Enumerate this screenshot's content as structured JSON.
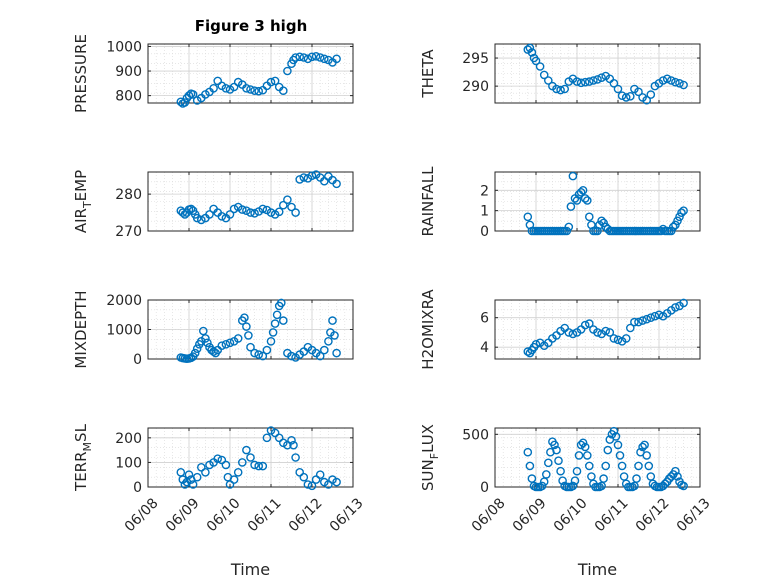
{
  "figure": {
    "title": "Figure 3 high",
    "marker_color": "#0072BD",
    "x_axis_label": "Time",
    "x_ticks": [
      "06/08",
      "06/09",
      "06/10",
      "06/11",
      "06/12",
      "06/13"
    ]
  },
  "chart_data": [
    {
      "type": "scatter",
      "title": "Figure 3 high",
      "ylabel": "PRESSURE",
      "ylim": [
        770,
        1010
      ],
      "yticks": [
        "800",
        "900",
        "1000"
      ],
      "ytick_values": [
        800,
        900,
        1000
      ],
      "xlim": [
        0,
        5
      ],
      "grid": true,
      "series": [
        {
          "x": [
            0.8,
            0.85,
            0.9,
            0.95,
            1.0,
            1.05,
            1.1,
            1.2,
            1.3,
            1.4,
            1.5,
            1.6,
            1.7,
            1.8,
            1.9,
            2.0,
            2.1,
            2.2,
            2.3,
            2.4,
            2.5,
            2.6,
            2.7,
            2.8,
            2.9,
            3.0,
            3.1,
            3.2,
            3.3,
            3.4,
            3.5,
            3.55,
            3.6,
            3.7,
            3.8,
            3.9,
            4.0,
            4.1,
            4.2,
            4.3,
            4.4,
            4.5,
            4.6
          ],
          "y": [
            775,
            768,
            772,
            790,
            800,
            808,
            805,
            780,
            790,
            805,
            815,
            830,
            860,
            840,
            830,
            825,
            835,
            855,
            845,
            830,
            825,
            820,
            818,
            822,
            840,
            855,
            860,
            835,
            820,
            900,
            930,
            945,
            955,
            958,
            955,
            950,
            958,
            960,
            955,
            950,
            945,
            935,
            950
          ]
        }
      ]
    },
    {
      "type": "scatter",
      "ylabel": "THETA",
      "ylim": [
        287,
        297.5
      ],
      "yticks": [
        "290",
        "295"
      ],
      "ytick_values": [
        290,
        295
      ],
      "xlim": [
        0,
        5
      ],
      "grid": true,
      "series": [
        {
          "x": [
            0.8,
            0.85,
            0.9,
            0.95,
            1.0,
            1.1,
            1.2,
            1.3,
            1.4,
            1.5,
            1.6,
            1.7,
            1.8,
            1.9,
            2.0,
            2.1,
            2.2,
            2.3,
            2.4,
            2.5,
            2.6,
            2.7,
            2.8,
            2.9,
            3.0,
            3.1,
            3.2,
            3.3,
            3.4,
            3.5,
            3.6,
            3.7,
            3.8,
            3.9,
            4.0,
            4.1,
            4.2,
            4.3,
            4.4,
            4.5,
            4.6
          ],
          "y": [
            296.5,
            296.8,
            296.0,
            295.0,
            294.5,
            293.5,
            292.0,
            291.0,
            290.0,
            289.5,
            289.3,
            289.5,
            290.8,
            291.3,
            290.8,
            290.6,
            290.7,
            290.8,
            291.0,
            291.2,
            291.5,
            291.8,
            291.3,
            290.5,
            289.5,
            288.3,
            288.0,
            288.2,
            289.5,
            289.0,
            288.0,
            287.5,
            288.5,
            290.0,
            290.5,
            291.0,
            291.3,
            291.0,
            290.7,
            290.5,
            290.2
          ]
        }
      ]
    },
    {
      "type": "scatter",
      "ylabel": "AIR_TEMP",
      "ylim": [
        270,
        286
      ],
      "yticks": [
        "270",
        "280"
      ],
      "ytick_values": [
        270,
        280
      ],
      "xlim": [
        0,
        5
      ],
      "grid": true,
      "series": [
        {
          "x": [
            0.8,
            0.85,
            0.9,
            0.95,
            1.0,
            1.05,
            1.1,
            1.15,
            1.2,
            1.3,
            1.4,
            1.5,
            1.6,
            1.7,
            1.8,
            1.9,
            2.0,
            2.1,
            2.2,
            2.3,
            2.4,
            2.5,
            2.6,
            2.7,
            2.8,
            2.9,
            3.0,
            3.1,
            3.2,
            3.3,
            3.4,
            3.5,
            3.6,
            3.7,
            3.8,
            3.9,
            4.0,
            4.1,
            4.2,
            4.3,
            4.4,
            4.5,
            4.6
          ],
          "y": [
            275.5,
            275.0,
            274.5,
            275.0,
            275.8,
            276.0,
            275.5,
            274.5,
            273.5,
            273.0,
            273.5,
            274.5,
            276.0,
            275.0,
            274.0,
            273.5,
            274.5,
            276.0,
            276.5,
            275.8,
            275.5,
            275.0,
            274.8,
            275.3,
            276.0,
            275.7,
            275.0,
            274.5,
            275.2,
            277.0,
            278.5,
            276.5,
            275.0,
            284.0,
            284.5,
            284.3,
            285.0,
            285.3,
            284.5,
            283.5,
            284.8,
            283.8,
            282.8
          ]
        }
      ]
    },
    {
      "type": "scatter",
      "ylabel": "RAINFALL",
      "ylim": [
        0,
        2.9
      ],
      "yticks": [
        "0",
        "1",
        "2"
      ],
      "ytick_values": [
        0,
        1,
        2
      ],
      "xlim": [
        0,
        5
      ],
      "grid": true,
      "series": [
        {
          "x": [
            0.8,
            0.85,
            0.9,
            0.95,
            1.0,
            1.05,
            1.1,
            1.15,
            1.2,
            1.25,
            1.3,
            1.35,
            1.4,
            1.45,
            1.5,
            1.55,
            1.6,
            1.65,
            1.7,
            1.75,
            1.8,
            1.85,
            1.9,
            1.95,
            2.0,
            2.05,
            2.1,
            2.15,
            2.2,
            2.25,
            2.3,
            2.35,
            2.4,
            2.45,
            2.5,
            2.55,
            2.6,
            2.65,
            2.7,
            2.75,
            2.8,
            2.85,
            2.9,
            2.95,
            3.0,
            3.05,
            3.1,
            3.15,
            3.2,
            3.25,
            3.3,
            3.35,
            3.4,
            3.45,
            3.5,
            3.55,
            3.6,
            3.65,
            3.7,
            3.75,
            3.8,
            3.85,
            3.9,
            3.95,
            4.0,
            4.05,
            4.1,
            4.15,
            4.2,
            4.25,
            4.3,
            4.35,
            4.4,
            4.45,
            4.5,
            4.55,
            4.6
          ],
          "y": [
            0.7,
            0.3,
            0,
            0,
            0,
            0,
            0,
            0,
            0,
            0,
            0,
            0,
            0,
            0,
            0,
            0,
            0,
            0,
            0,
            0,
            0.2,
            1.2,
            2.7,
            1.6,
            1.5,
            1.8,
            1.9,
            2.0,
            1.6,
            1.5,
            0.7,
            0.3,
            0,
            0,
            0,
            0.3,
            0.5,
            0.4,
            0.2,
            0.1,
            0,
            0,
            0,
            0,
            0,
            0,
            0,
            0,
            0,
            0,
            0,
            0,
            0,
            0,
            0,
            0,
            0,
            0,
            0,
            0,
            0,
            0,
            0,
            0,
            0,
            0,
            0.1,
            0,
            0,
            0,
            0,
            0.2,
            0.3,
            0.5,
            0.7,
            0.9,
            1.0
          ]
        }
      ]
    },
    {
      "type": "scatter",
      "ylabel": "MIXDEPTH",
      "ylim": [
        0,
        2000
      ],
      "yticks": [
        "0",
        "1000",
        "2000"
      ],
      "ytick_values": [
        0,
        1000,
        2000
      ],
      "xlim": [
        0,
        5
      ],
      "grid": true,
      "series": [
        {
          "x": [
            0.8,
            0.85,
            0.9,
            0.95,
            1.0,
            1.05,
            1.1,
            1.15,
            1.2,
            1.25,
            1.3,
            1.35,
            1.4,
            1.45,
            1.5,
            1.55,
            1.6,
            1.65,
            1.7,
            1.8,
            1.9,
            2.0,
            2.1,
            2.2,
            2.3,
            2.35,
            2.4,
            2.45,
            2.5,
            2.6,
            2.7,
            2.8,
            2.9,
            3.0,
            3.05,
            3.1,
            3.15,
            3.2,
            3.25,
            3.3,
            3.4,
            3.5,
            3.6,
            3.7,
            3.8,
            3.9,
            4.0,
            4.1,
            4.2,
            4.3,
            4.4,
            4.45,
            4.5,
            4.55,
            4.6
          ],
          "y": [
            50,
            30,
            20,
            10,
            20,
            40,
            80,
            200,
            350,
            500,
            600,
            950,
            700,
            550,
            400,
            300,
            250,
            200,
            300,
            450,
            500,
            550,
            600,
            700,
            1300,
            1400,
            1100,
            800,
            400,
            200,
            150,
            100,
            300,
            600,
            900,
            1200,
            1500,
            1800,
            1900,
            1300,
            200,
            100,
            50,
            150,
            250,
            400,
            300,
            200,
            100,
            300,
            600,
            900,
            1300,
            800,
            200
          ]
        }
      ]
    },
    {
      "type": "scatter",
      "ylabel": "H2OMIXRA",
      "ylim": [
        3.2,
        7.2
      ],
      "yticks": [
        "4",
        "6"
      ],
      "ytick_values": [
        4,
        6
      ],
      "xlim": [
        0,
        5
      ],
      "grid": true,
      "series": [
        {
          "x": [
            0.8,
            0.85,
            0.9,
            0.95,
            1.0,
            1.1,
            1.2,
            1.3,
            1.4,
            1.5,
            1.6,
            1.7,
            1.8,
            1.9,
            2.0,
            2.1,
            2.2,
            2.3,
            2.4,
            2.5,
            2.6,
            2.7,
            2.8,
            2.9,
            3.0,
            3.1,
            3.2,
            3.3,
            3.4,
            3.5,
            3.6,
            3.7,
            3.8,
            3.9,
            4.0,
            4.1,
            4.2,
            4.3,
            4.4,
            4.5,
            4.6
          ],
          "y": [
            3.7,
            3.6,
            3.8,
            4.0,
            4.2,
            4.3,
            4.1,
            4.3,
            4.6,
            4.8,
            5.1,
            5.3,
            5.0,
            4.9,
            5.0,
            5.2,
            5.5,
            5.6,
            5.2,
            5.0,
            4.9,
            5.1,
            5.0,
            4.6,
            4.5,
            4.4,
            4.6,
            5.3,
            5.7,
            5.7,
            5.8,
            5.9,
            6.0,
            6.1,
            6.2,
            6.1,
            6.3,
            6.5,
            6.7,
            6.8,
            7.0
          ]
        }
      ]
    },
    {
      "type": "scatter",
      "ylabel": "TERR_MSL",
      "ylim": [
        0,
        240
      ],
      "yticks": [
        "0",
        "100",
        "200"
      ],
      "ytick_values": [
        0,
        100,
        200
      ],
      "xlim": [
        0,
        5
      ],
      "grid": true,
      "series": [
        {
          "x": [
            0.8,
            0.85,
            0.9,
            0.95,
            1.0,
            1.05,
            1.1,
            1.2,
            1.3,
            1.4,
            1.5,
            1.6,
            1.7,
            1.8,
            1.9,
            1.95,
            2.0,
            2.1,
            2.2,
            2.3,
            2.4,
            2.5,
            2.6,
            2.7,
            2.8,
            2.9,
            3.0,
            3.1,
            3.2,
            3.3,
            3.4,
            3.5,
            3.55,
            3.6,
            3.7,
            3.8,
            3.9,
            4.0,
            4.1,
            4.2,
            4.3,
            4.4,
            4.5,
            4.6
          ],
          "y": [
            60,
            30,
            10,
            20,
            50,
            30,
            10,
            40,
            80,
            60,
            90,
            100,
            115,
            110,
            90,
            40,
            10,
            30,
            60,
            100,
            150,
            120,
            90,
            85,
            85,
            200,
            230,
            220,
            200,
            180,
            170,
            190,
            170,
            120,
            60,
            40,
            10,
            5,
            30,
            50,
            20,
            10,
            30,
            20
          ]
        }
      ]
    },
    {
      "type": "scatter",
      "ylabel": "SUN_FLUX",
      "ylim": [
        0,
        560
      ],
      "yticks": [
        "0",
        "500"
      ],
      "ytick_values": [
        0,
        500
      ],
      "xlim": [
        0,
        5
      ],
      "grid": true,
      "series": [
        {
          "x": [
            0.8,
            0.85,
            0.9,
            0.95,
            1.0,
            1.05,
            1.1,
            1.15,
            1.2,
            1.25,
            1.3,
            1.35,
            1.4,
            1.45,
            1.5,
            1.55,
            1.6,
            1.65,
            1.7,
            1.75,
            1.8,
            1.85,
            1.9,
            1.95,
            2.0,
            2.05,
            2.1,
            2.15,
            2.2,
            2.25,
            2.3,
            2.35,
            2.4,
            2.45,
            2.5,
            2.55,
            2.6,
            2.65,
            2.7,
            2.75,
            2.8,
            2.85,
            2.9,
            2.95,
            3.0,
            3.05,
            3.1,
            3.15,
            3.2,
            3.25,
            3.3,
            3.35,
            3.4,
            3.45,
            3.5,
            3.55,
            3.6,
            3.65,
            3.7,
            3.75,
            3.8,
            3.85,
            3.9,
            3.95,
            4.0,
            4.05,
            4.1,
            4.15,
            4.2,
            4.25,
            4.3,
            4.35,
            4.4,
            4.45,
            4.5,
            4.55,
            4.6
          ],
          "y": [
            330,
            200,
            80,
            10,
            0,
            0,
            0,
            10,
            50,
            120,
            230,
            330,
            430,
            400,
            350,
            250,
            150,
            60,
            10,
            0,
            0,
            0,
            10,
            60,
            150,
            300,
            400,
            420,
            380,
            300,
            200,
            100,
            30,
            0,
            0,
            0,
            10,
            80,
            200,
            350,
            450,
            500,
            530,
            480,
            400,
            300,
            200,
            100,
            30,
            0,
            0,
            0,
            10,
            80,
            200,
            330,
            380,
            400,
            300,
            200,
            100,
            30,
            10,
            0,
            0,
            0,
            10,
            30,
            50,
            80,
            100,
            120,
            150,
            100,
            50,
            20,
            10
          ]
        }
      ]
    }
  ]
}
